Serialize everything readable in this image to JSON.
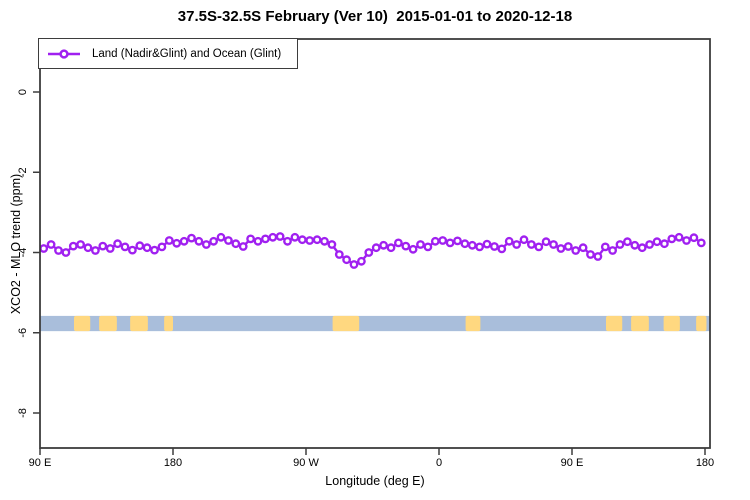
{
  "title": "37.5S-32.5S February (Ver 10)  2015-01-01 to 2020-12-18",
  "legend": {
    "label": "Land (Nadir&Glint) and Ocean (Glint)",
    "marker_color": "#a020f0"
  },
  "colors": {
    "series": "#a020f0",
    "marker_fill": "#ffffff",
    "ocean": "#a9bedb",
    "land": "#ffd880",
    "axis": "#3d3d3d",
    "text": "#000000"
  },
  "chart_data": {
    "type": "line",
    "title": "37.5S-32.5S February (Ver 10)  2015-01-01 to 2020-12-18",
    "xlabel": "Longitude (deg E)",
    "ylabel": "XCO2 - MLO trend (ppm)",
    "xlim": [
      90,
      543.5
    ],
    "ylim": [
      -8.9,
      1.3
    ],
    "x_ticks": [
      {
        "value": 90,
        "label": "90 E"
      },
      {
        "value": 180,
        "label": "180"
      },
      {
        "value": 270,
        "label": "90 W"
      },
      {
        "value": 360,
        "label": "0"
      },
      {
        "value": 450,
        "label": "90 E"
      },
      {
        "value": 540,
        "label": "180"
      }
    ],
    "y_ticks": [
      {
        "value": 0,
        "label": "0"
      },
      {
        "value": -2,
        "label": "-2"
      },
      {
        "value": -4,
        "label": "-4"
      },
      {
        "value": -6,
        "label": "-6"
      },
      {
        "value": -8,
        "label": "-8"
      }
    ],
    "series": [
      {
        "name": "Land (Nadir&Glint) and Ocean (Glint)",
        "x": [
          92.5,
          97.5,
          102.5,
          107.5,
          112.5,
          117.5,
          122.5,
          127.5,
          132.5,
          137.5,
          142.5,
          147.5,
          152.5,
          157.5,
          162.5,
          167.5,
          172.5,
          177.5,
          182.5,
          187.5,
          192.5,
          197.5,
          202.5,
          207.5,
          212.5,
          217.5,
          222.5,
          227.5,
          232.5,
          237.5,
          242.5,
          247.5,
          252.5,
          257.5,
          262.5,
          267.5,
          272.5,
          277.5,
          282.5,
          287.5,
          292.5,
          297.5,
          302.5,
          307.5,
          312.5,
          317.5,
          322.5,
          327.5,
          332.5,
          337.5,
          342.5,
          347.5,
          352.5,
          357.5,
          362.5,
          367.5,
          372.5,
          377.5,
          382.5,
          387.5,
          392.5,
          397.5,
          402.5,
          407.5,
          412.5,
          417.5,
          422.5,
          427.5,
          432.5,
          437.5,
          442.5,
          447.5,
          452.5,
          457.5,
          462.5,
          467.5,
          472.5,
          477.5,
          482.5,
          487.5,
          492.5,
          497.5,
          502.5,
          507.5,
          512.5,
          517.5,
          522.5,
          527.5,
          532.5,
          537.5
        ],
        "values": [
          -3.9,
          -3.8,
          -3.95,
          -4.0,
          -3.84,
          -3.8,
          -3.88,
          -3.95,
          -3.84,
          -3.9,
          -3.78,
          -3.86,
          -3.94,
          -3.83,
          -3.88,
          -3.94,
          -3.86,
          -3.7,
          -3.77,
          -3.72,
          -3.64,
          -3.72,
          -3.8,
          -3.72,
          -3.62,
          -3.7,
          -3.78,
          -3.85,
          -3.66,
          -3.72,
          -3.66,
          -3.62,
          -3.6,
          -3.72,
          -3.62,
          -3.68,
          -3.7,
          -3.68,
          -3.72,
          -3.8,
          -4.05,
          -4.18,
          -4.3,
          -4.22,
          -4.0,
          -3.88,
          -3.82,
          -3.88,
          -3.76,
          -3.84,
          -3.92,
          -3.8,
          -3.86,
          -3.72,
          -3.7,
          -3.76,
          -3.71,
          -3.78,
          -3.82,
          -3.86,
          -3.79,
          -3.85,
          -3.91,
          -3.72,
          -3.8,
          -3.68,
          -3.8,
          -3.86,
          -3.73,
          -3.8,
          -3.9,
          -3.85,
          -3.95,
          -3.88,
          -4.05,
          -4.1,
          -3.86,
          -3.95,
          -3.8,
          -3.73,
          -3.82,
          -3.88,
          -3.8,
          -3.73,
          -3.78,
          -3.66,
          -3.62,
          -3.7,
          -3.63,
          -3.76
        ]
      }
    ],
    "map_band": {
      "description": "land-ocean strip for latitude band 37.5S-32.5S",
      "y_top_ppm": -5.58,
      "y_bottom_ppm": -5.96,
      "land_patches_lon": [
        [
          113,
          124
        ],
        [
          130,
          142
        ],
        [
          151,
          163
        ],
        [
          174,
          180
        ],
        [
          288,
          306
        ],
        [
          378,
          388
        ],
        [
          473,
          484
        ],
        [
          490,
          502
        ],
        [
          512,
          523
        ],
        [
          534,
          541
        ]
      ]
    },
    "legend_position": "top-left",
    "grid": false
  }
}
